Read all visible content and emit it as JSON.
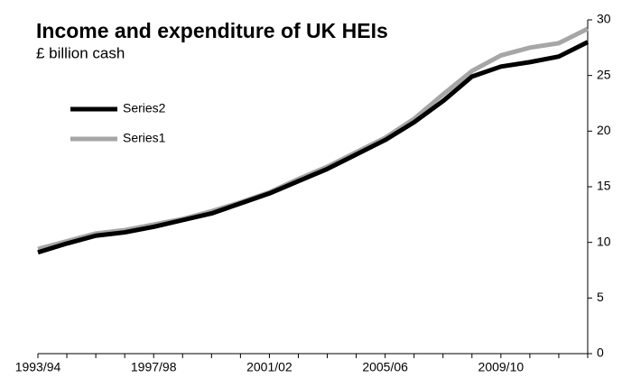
{
  "chart_data": {
    "type": "line",
    "title": "Income and expenditure of UK HEIs",
    "subtitle": "£ billion cash",
    "categories": [
      "1993/94",
      null,
      null,
      null,
      "1997/98",
      null,
      null,
      null,
      "2001/02",
      null,
      null,
      null,
      "2005/06",
      null,
      null,
      null,
      "2009/10",
      null,
      null,
      null
    ],
    "series": [
      {
        "name": "Series2",
        "color": "#000000",
        "values": [
          9.1,
          9.9,
          10.6,
          10.9,
          11.4,
          12.0,
          12.6,
          13.5,
          14.4,
          15.5,
          16.6,
          17.9,
          19.2,
          20.8,
          22.7,
          24.9,
          25.8,
          26.2,
          26.7,
          28.0
        ]
      },
      {
        "name": "Series1",
        "color": "#a6a6a6",
        "values": [
          9.4,
          10.1,
          10.8,
          11.1,
          11.6,
          12.1,
          12.8,
          13.6,
          14.5,
          15.7,
          16.8,
          18.1,
          19.4,
          21.1,
          23.3,
          25.4,
          26.8,
          27.5,
          27.9,
          29.2
        ]
      }
    ],
    "ylim": [
      0,
      30
    ],
    "yticks": [
      0,
      5,
      10,
      15,
      20,
      25,
      30
    ],
    "grid": false,
    "legend": "upper-left"
  }
}
